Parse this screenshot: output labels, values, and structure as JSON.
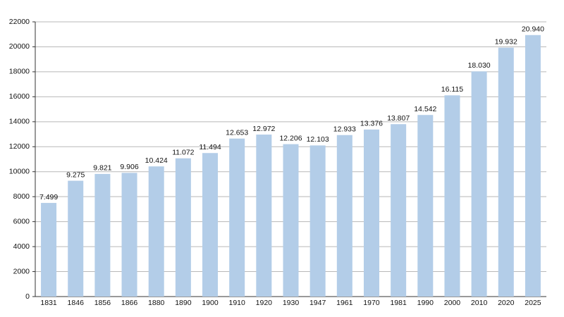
{
  "chart_data": {
    "type": "bar",
    "categories": [
      "1831",
      "1846",
      "1856",
      "1866",
      "1880",
      "1890",
      "1900",
      "1910",
      "1920",
      "1930",
      "1947",
      "1961",
      "1970",
      "1981",
      "1990",
      "2000",
      "2010",
      "2020",
      "2025"
    ],
    "values": [
      7499,
      9275,
      9821,
      9906,
      10424,
      11072,
      11494,
      12653,
      12972,
      12206,
      12103,
      12933,
      13376,
      13807,
      14542,
      16115,
      18030,
      19932,
      20940
    ],
    "value_labels": [
      "7.499",
      "9.275",
      "9.821",
      "9.906",
      "10.424",
      "11.072",
      "11.494",
      "12.653",
      "12.972",
      "12.206",
      "12.103",
      "12.933",
      "13.376",
      "13.807",
      "14.542",
      "16.115",
      "18.030",
      "19.932",
      "20.940"
    ],
    "color": "#b3cde8",
    "ylim": [
      0,
      22000
    ],
    "yticks": [
      0,
      2000,
      4000,
      6000,
      8000,
      10000,
      12000,
      14000,
      16000,
      18000,
      20000,
      22000
    ],
    "grid": true
  }
}
